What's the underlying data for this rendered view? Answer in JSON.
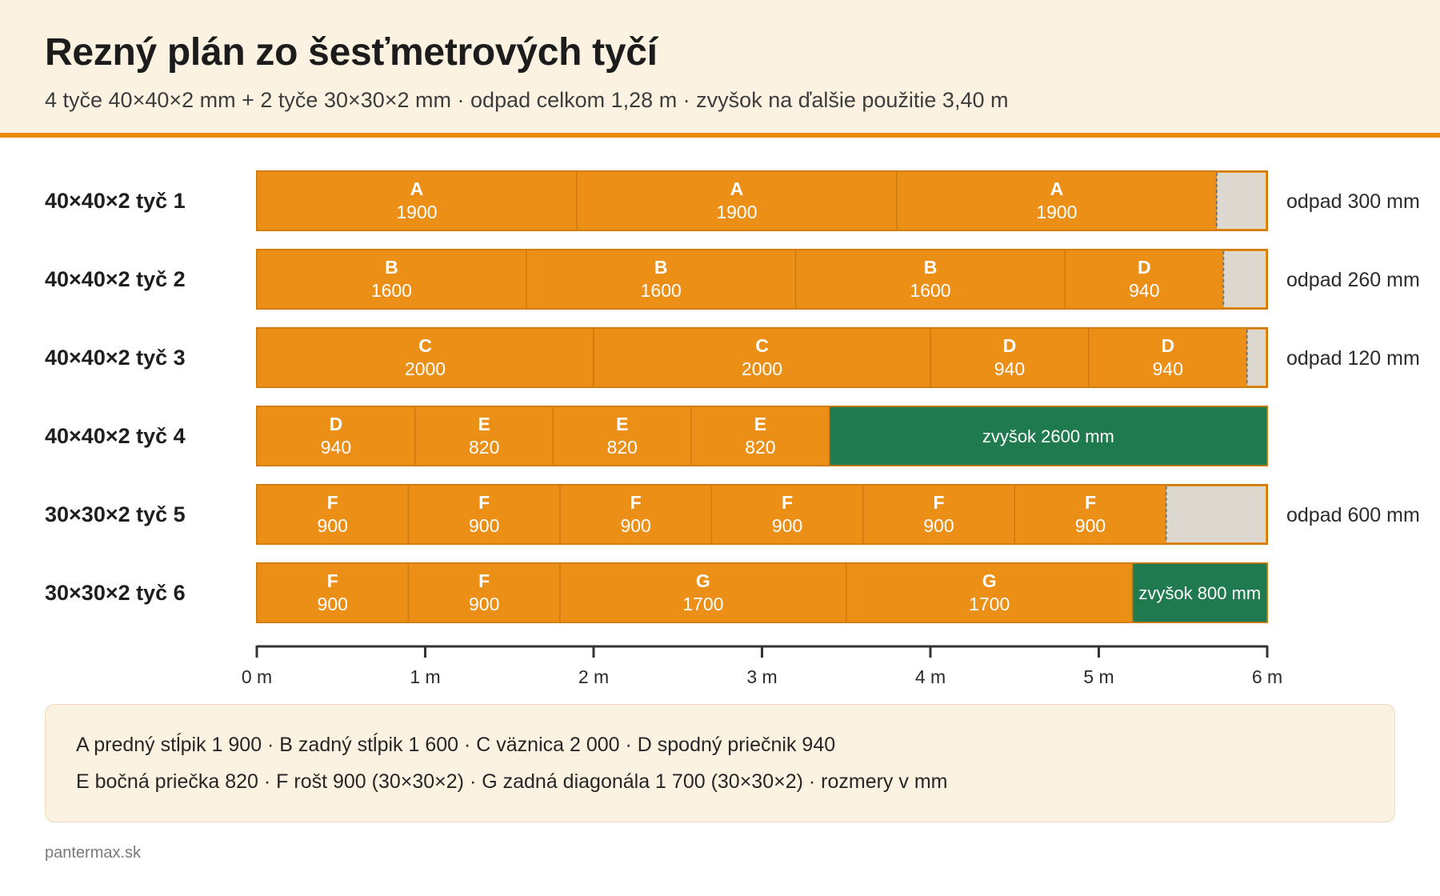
{
  "header": {
    "title": "Rezný plán zo šesťmetrových tyčí",
    "subtitle": "4 tyče 40×40×2 mm + 2 tyče 30×30×2 mm · odpad celkom 1,28 m · zvyšok na ďalšie použitie 3,40 m"
  },
  "colors": {
    "cut": "#ec8f17",
    "cut_border": "#cf7a0d",
    "waste": "#dcd8cf",
    "remnant": "#1f7a4f",
    "axis": "#333333",
    "accent": "#ea8a0c"
  },
  "chart_data": {
    "type": "bar",
    "orientation": "horizontal-stacked",
    "bar_length_mm": 6000,
    "xlim": [
      0,
      6
    ],
    "x_unit": "m",
    "x_ticks": [
      "0 m",
      "1 m",
      "2 m",
      "3 m",
      "4 m",
      "5 m",
      "6 m"
    ],
    "bars": [
      {
        "label": "40×40×2 tyč 1",
        "pieces": [
          {
            "code": "A",
            "length": 1900
          },
          {
            "code": "A",
            "length": 1900
          },
          {
            "code": "A",
            "length": 1900
          }
        ],
        "end": {
          "kind": "waste",
          "length": 300,
          "text": "odpad 300 mm"
        }
      },
      {
        "label": "40×40×2 tyč 2",
        "pieces": [
          {
            "code": "B",
            "length": 1600
          },
          {
            "code": "B",
            "length": 1600
          },
          {
            "code": "B",
            "length": 1600
          },
          {
            "code": "D",
            "length": 940
          }
        ],
        "end": {
          "kind": "waste",
          "length": 260,
          "text": "odpad 260 mm"
        }
      },
      {
        "label": "40×40×2 tyč 3",
        "pieces": [
          {
            "code": "C",
            "length": 2000
          },
          {
            "code": "C",
            "length": 2000
          },
          {
            "code": "D",
            "length": 940
          },
          {
            "code": "D",
            "length": 940
          }
        ],
        "end": {
          "kind": "waste",
          "length": 120,
          "text": "odpad 120 mm"
        }
      },
      {
        "label": "40×40×2 tyč 4",
        "pieces": [
          {
            "code": "D",
            "length": 940
          },
          {
            "code": "E",
            "length": 820
          },
          {
            "code": "E",
            "length": 820
          },
          {
            "code": "E",
            "length": 820
          }
        ],
        "end": {
          "kind": "remnant",
          "length": 2600,
          "text": "zvyšok 2600 mm"
        }
      },
      {
        "label": "30×30×2 tyč 5",
        "pieces": [
          {
            "code": "F",
            "length": 900
          },
          {
            "code": "F",
            "length": 900
          },
          {
            "code": "F",
            "length": 900
          },
          {
            "code": "F",
            "length": 900
          },
          {
            "code": "F",
            "length": 900
          },
          {
            "code": "F",
            "length": 900
          }
        ],
        "end": {
          "kind": "waste",
          "length": 600,
          "text": "odpad 600 mm"
        }
      },
      {
        "label": "30×30×2 tyč 6",
        "pieces": [
          {
            "code": "F",
            "length": 900
          },
          {
            "code": "F",
            "length": 900
          },
          {
            "code": "G",
            "length": 1700
          },
          {
            "code": "G",
            "length": 1700
          }
        ],
        "end": {
          "kind": "remnant",
          "length": 800,
          "text": "zvyšok 800 mm"
        }
      }
    ]
  },
  "legend": {
    "line1": "A predný stĺpik 1 900 · B zadný stĺpik 1 600 · C väznica 2 000 · D spodný priečnik 940",
    "line2": "E bočná priečka 820 · F rošt 900 (30×30×2) · G zadná diagonála 1 700 (30×30×2) · rozmery v mm"
  },
  "footer": {
    "source": "pantermax.sk"
  }
}
